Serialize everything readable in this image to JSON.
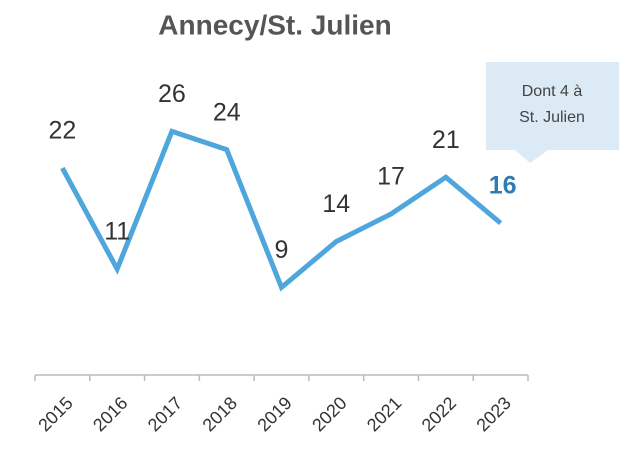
{
  "chart_data": {
    "type": "line",
    "title": "Annecy/St. Julien",
    "categories": [
      "2015",
      "2016",
      "2017",
      "2018",
      "2019",
      "2020",
      "2021",
      "2022",
      "2023"
    ],
    "values": [
      22,
      11,
      26,
      24,
      9,
      14,
      17,
      21,
      16
    ],
    "color": "#4fa6dc",
    "highlight_color": "#2f7bb5",
    "annotation": [
      "Dont 4 à",
      "St. Julien"
    ],
    "annotation_color": "#dbeaf5"
  }
}
